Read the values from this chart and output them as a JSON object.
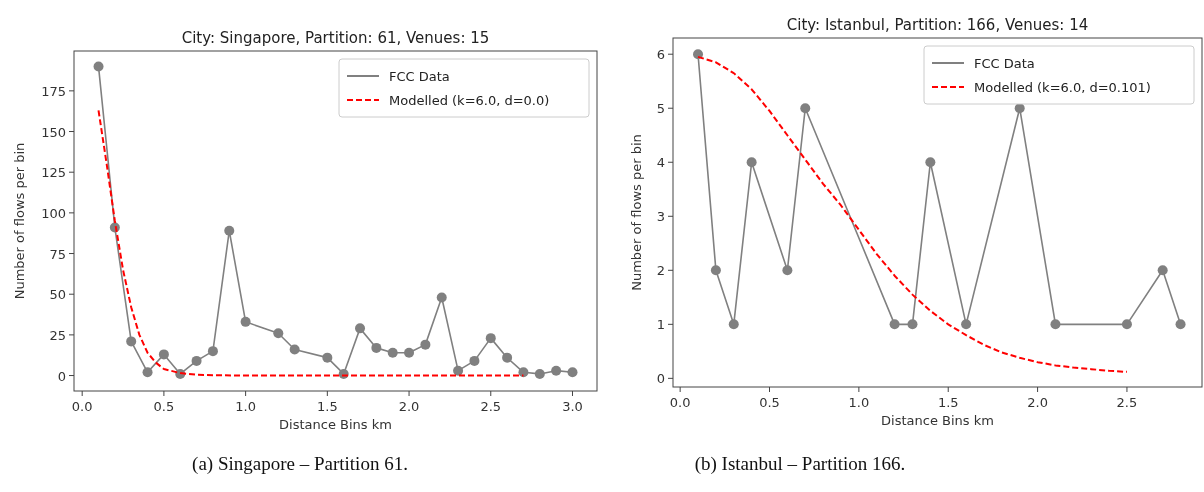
{
  "chart_data": [
    {
      "type": "line",
      "title": "City: Singapore, Partition: 61, Venues: 15",
      "xlabel": "Distance Bins km",
      "ylabel": "Number of flows per bin",
      "annotations": [
        "(a) Singapore – Partition 61."
      ],
      "xlim": [
        -0.05,
        3.15
      ],
      "ylim": [
        -9.5,
        199.5
      ],
      "xticks": [
        {
          "value": 0,
          "label": "0.0"
        },
        {
          "value": 0.5,
          "label": "0.5"
        },
        {
          "value": 1,
          "label": "1.0"
        },
        {
          "value": 1.5,
          "label": "1.5"
        },
        {
          "value": 2,
          "label": "2.0"
        },
        {
          "value": 2.5,
          "label": "2.5"
        },
        {
          "value": 3,
          "label": "3.0"
        }
      ],
      "yticks": [
        0,
        25,
        50,
        75,
        100,
        125,
        150,
        175
      ],
      "legend": "top right",
      "series": [
        {
          "name": "FCC Data",
          "color": "#808080",
          "marker": "circle",
          "line_style": "solid",
          "x": [
            0.1,
            0.2,
            0.3,
            0.4,
            0.5,
            0.6,
            0.7,
            0.8,
            0.9,
            1.0,
            1.2,
            1.3,
            1.5,
            1.6,
            1.7,
            1.8,
            1.9,
            2.0,
            2.1,
            2.2,
            2.3,
            2.4,
            2.5,
            2.6,
            2.7,
            2.8,
            2.9,
            3.0
          ],
          "values": [
            190,
            91,
            21,
            2,
            13,
            1,
            9,
            15,
            89,
            33,
            26,
            16,
            11,
            1,
            29,
            17,
            14,
            14,
            19,
            48,
            3,
            9,
            23,
            11,
            2,
            1,
            3,
            2
          ]
        },
        {
          "name": "Modelled (k=6.0, d=0.0)",
          "color": "#ff0000",
          "marker": "none",
          "line_style": "dashed",
          "x": [
            0.1,
            0.15,
            0.2,
            0.25,
            0.3,
            0.35,
            0.4,
            0.45,
            0.5,
            0.6,
            0.7,
            0.8,
            1.0,
            1.5,
            2.0,
            2.7
          ],
          "values": [
            163,
            130,
            95,
            65,
            42,
            25,
            14,
            8,
            4,
            1.5,
            0.5,
            0.2,
            0,
            0,
            0,
            0
          ]
        }
      ]
    },
    {
      "type": "line",
      "title": "City: Istanbul, Partition: 166, Venues: 14",
      "xlabel": "Distance Bins km",
      "ylabel": "Number of flows per bin",
      "annotations": [
        "(b) Istanbul – Partition 166."
      ],
      "xlim": [
        -0.04,
        2.92
      ],
      "ylim": [
        -0.16,
        6.3
      ],
      "xticks": [
        {
          "value": 0,
          "label": "0.0"
        },
        {
          "value": 0.5,
          "label": "0.5"
        },
        {
          "value": 1,
          "label": "1.0"
        },
        {
          "value": 1.5,
          "label": "1.5"
        },
        {
          "value": 2,
          "label": "2.0"
        },
        {
          "value": 2.5,
          "label": "2.5"
        }
      ],
      "yticks": [
        0,
        1,
        2,
        3,
        4,
        5,
        6
      ],
      "legend": "top right",
      "series": [
        {
          "name": "FCC Data",
          "color": "#808080",
          "marker": "circle",
          "line_style": "solid",
          "x": [
            0.1,
            0.2,
            0.3,
            0.4,
            0.6,
            0.7,
            1.2,
            1.3,
            1.4,
            1.6,
            1.9,
            2.1,
            2.5,
            2.7,
            2.8
          ],
          "values": [
            6,
            2,
            1,
            4,
            2,
            5,
            1,
            1,
            4,
            1,
            5,
            1,
            1,
            2,
            1
          ]
        },
        {
          "name": "Modelled (k=6.0, d=0.101)",
          "color": "#ff0000",
          "marker": "none",
          "line_style": "dashed",
          "x": [
            0.1,
            0.2,
            0.3,
            0.4,
            0.5,
            0.6,
            0.7,
            0.8,
            0.9,
            1.0,
            1.1,
            1.2,
            1.3,
            1.4,
            1.5,
            1.6,
            1.7,
            1.8,
            1.9,
            2.0,
            2.1,
            2.2,
            2.3,
            2.4,
            2.5
          ],
          "values": [
            5.95,
            5.85,
            5.65,
            5.35,
            4.95,
            4.5,
            4.05,
            3.6,
            3.2,
            2.75,
            2.3,
            1.9,
            1.55,
            1.25,
            1.0,
            0.8,
            0.62,
            0.48,
            0.38,
            0.3,
            0.24,
            0.2,
            0.17,
            0.14,
            0.12
          ]
        }
      ]
    }
  ]
}
